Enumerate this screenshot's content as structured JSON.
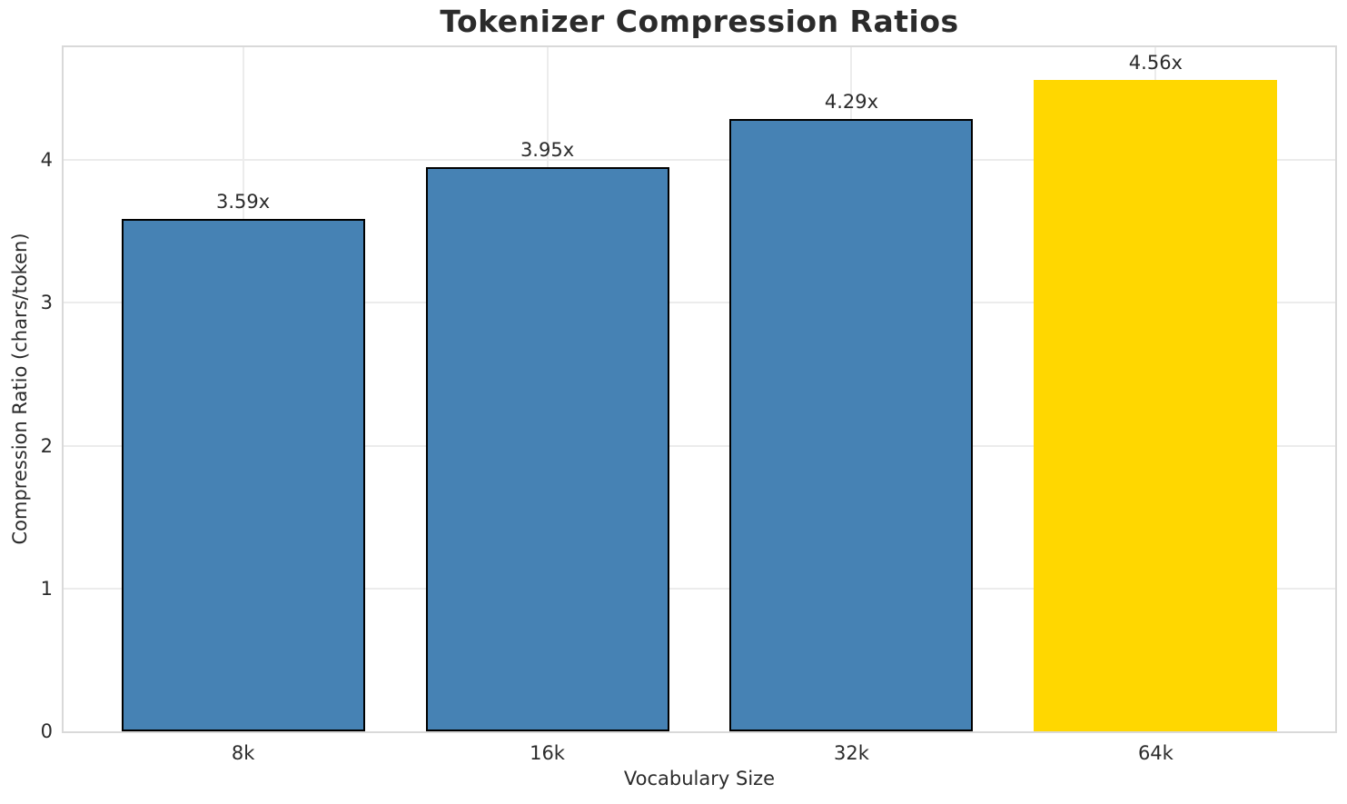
{
  "chart_data": {
    "type": "bar",
    "title": "Tokenizer Compression Ratios",
    "xlabel": "Vocabulary Size",
    "ylabel": "Compression Ratio (chars/token)",
    "categories": [
      "8k",
      "16k",
      "32k",
      "64k"
    ],
    "values": [
      3.59,
      3.95,
      4.29,
      4.56
    ],
    "bar_labels": [
      "3.59x",
      "3.95x",
      "4.29x",
      "4.56x"
    ],
    "bar_colors": [
      "#4682B4",
      "#4682B4",
      "#4682B4",
      "#FFD700"
    ],
    "bar_edge_colors": [
      "#000000",
      "#000000",
      "#000000",
      "none"
    ],
    "yticks": [
      0,
      1,
      2,
      3,
      4
    ],
    "ytick_labels": [
      "0",
      "1",
      "2",
      "3",
      "4"
    ],
    "ylim": [
      0,
      4.79
    ],
    "xlim": [
      -0.59,
      3.59
    ],
    "bar_width_fraction": 0.8,
    "grid": true,
    "grid_color": "#ececec",
    "spine_color": "#d9d9d9",
    "background_color": "#ffffff",
    "text_color": "#2b2b2b",
    "legend": false
  }
}
